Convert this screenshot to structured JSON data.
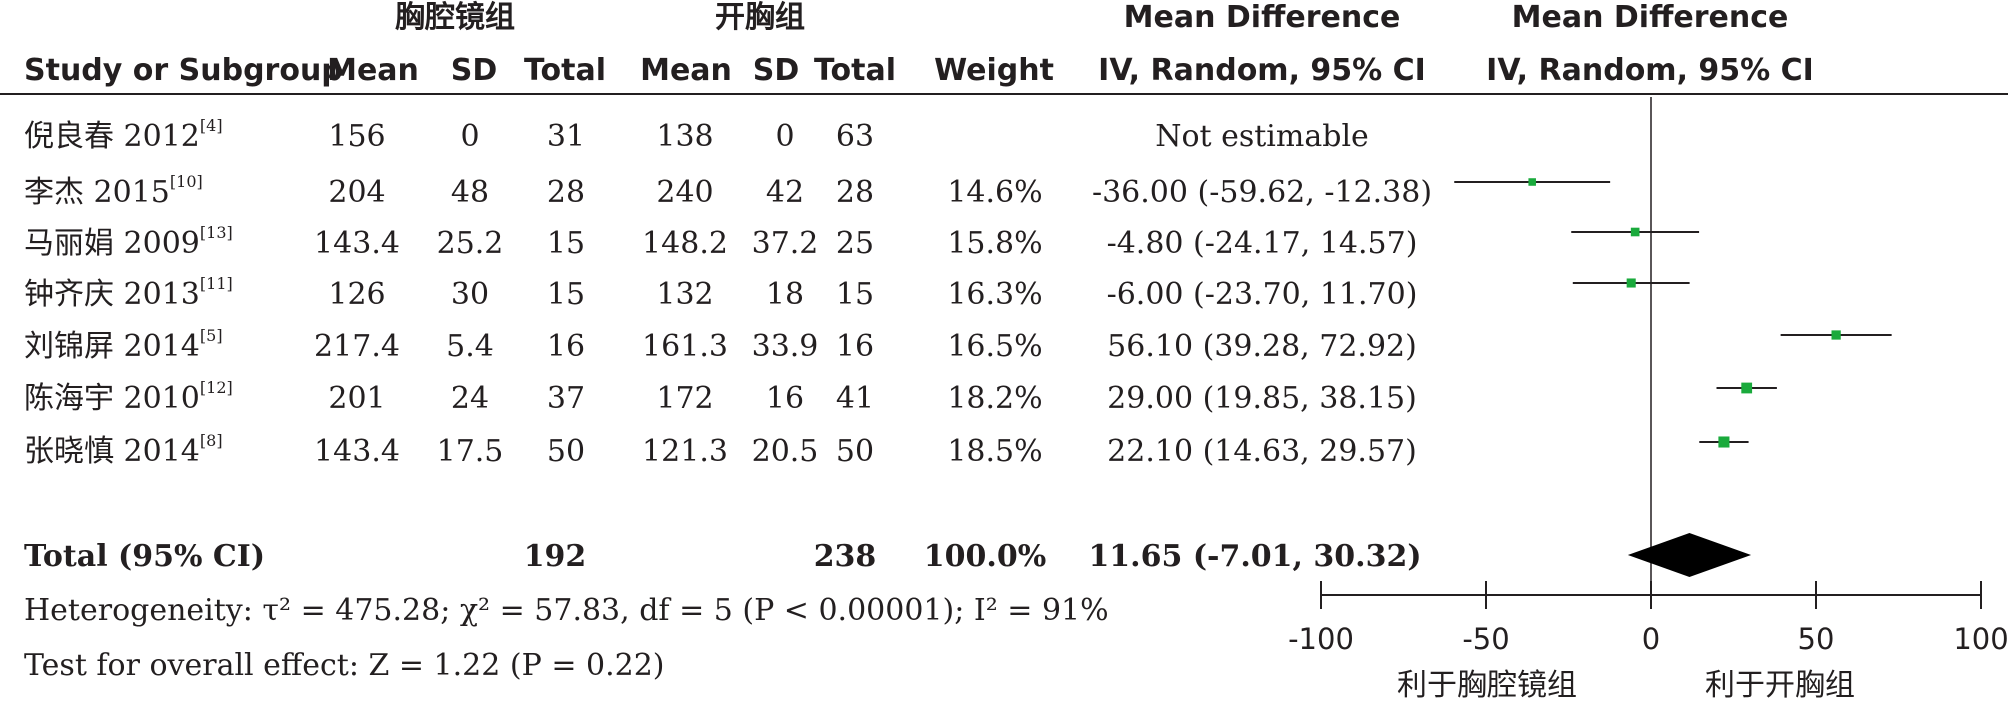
{
  "groups": {
    "experimental": "胸腔镜组",
    "control": "开胸组"
  },
  "headers": {
    "study": "Study or Subgroup",
    "mean1": "Mean",
    "sd1": "SD",
    "total1": "Total",
    "mean2": "Mean",
    "sd2": "SD",
    "total2": "Total",
    "weight": "Weight",
    "md_title": "Mean Difference",
    "md_method": "IV, Random, 95% CI",
    "plot_title": "Mean Difference",
    "plot_method": "IV, Random, 95% CI"
  },
  "studies": [
    {
      "name": "倪良春 2012",
      "ref": "[4]",
      "mean1": "156",
      "sd1": "0",
      "total1": "31",
      "mean2": "138",
      "sd2": "0",
      "total2": "63",
      "weight": "",
      "ci_text": "Not estimable"
    },
    {
      "name": "李杰 2015",
      "ref": "[10]",
      "mean1": "204",
      "sd1": "48",
      "total1": "28",
      "mean2": "240",
      "sd2": "42",
      "total2": "28",
      "weight": "14.6%",
      "ci_text": "-36.00 (-59.62, -12.38)"
    },
    {
      "name": "马丽娟 2009",
      "ref": "[13]",
      "mean1": "143.4",
      "sd1": "25.2",
      "total1": "15",
      "mean2": "148.2",
      "sd2": "37.2",
      "total2": "25",
      "weight": "15.8%",
      "ci_text": "-4.80 (-24.17, 14.57)"
    },
    {
      "name": "钟齐庆 2013",
      "ref": "[11]",
      "mean1": "126",
      "sd1": "30",
      "total1": "15",
      "mean2": "132",
      "sd2": "18",
      "total2": "15",
      "weight": "16.3%",
      "ci_text": "-6.00 (-23.70, 11.70)"
    },
    {
      "name": "刘锦屏 2014",
      "ref": "[5]",
      "mean1": "217.4",
      "sd1": "5.4",
      "total1": "16",
      "mean2": "161.3",
      "sd2": "33.9",
      "total2": "16",
      "weight": "16.5%",
      "ci_text": "56.10 (39.28, 72.92)"
    },
    {
      "name": "陈海宇 2010",
      "ref": "[12]",
      "mean1": "201",
      "sd1": "24",
      "total1": "37",
      "mean2": "172",
      "sd2": "16",
      "total2": "41",
      "weight": "18.2%",
      "ci_text": "29.00 (19.85, 38.15)"
    },
    {
      "name": "张晓慎 2014",
      "ref": "[8]",
      "mean1": "143.4",
      "sd1": "17.5",
      "total1": "50",
      "mean2": "121.3",
      "sd2": "20.5",
      "total2": "50",
      "weight": "18.5%",
      "ci_text": "22.10 (14.63, 29.57)"
    }
  ],
  "total": {
    "label": "Total (95% CI)",
    "total1": "192",
    "total2": "238",
    "weight": "100.0%",
    "ci_text": "11.65 (-7.01, 30.32)"
  },
  "heterogeneity": "Heterogeneity: τ² = 475.28; χ² = 57.83, df = 5 (P < 0.00001); I² = 91%",
  "overall_effect": "Test for overall effect: Z = 1.22 (P = 0.22)",
  "favours": {
    "left": "利于胸腔镜组",
    "right": "利于开胸组"
  },
  "colors": {
    "point": "#1aaa3c",
    "diamond": "#000000",
    "text": "#231f20"
  },
  "chart_data": {
    "type": "forest",
    "axis": {
      "min": -100,
      "max": 100,
      "ticks": [
        -100,
        -50,
        0,
        50,
        100
      ],
      "tick_labels": [
        "-100",
        "-50",
        "0",
        "50",
        "100"
      ]
    },
    "studies": [
      {
        "name": "李杰 2015",
        "md": -36.0,
        "lower": -59.62,
        "upper": -12.38,
        "weight": 14.6
      },
      {
        "name": "马丽娟 2009",
        "md": -4.8,
        "lower": -24.17,
        "upper": 14.57,
        "weight": 15.8
      },
      {
        "name": "钟齐庆 2013",
        "md": -6.0,
        "lower": -23.7,
        "upper": 11.7,
        "weight": 16.3
      },
      {
        "name": "刘锦屏 2014",
        "md": 56.1,
        "lower": 39.28,
        "upper": 72.92,
        "weight": 16.5
      },
      {
        "name": "陈海宇 2010",
        "md": 29.0,
        "lower": 19.85,
        "upper": 38.15,
        "weight": 18.2
      },
      {
        "name": "张晓慎 2014",
        "md": 22.1,
        "lower": 14.63,
        "upper": 29.57,
        "weight": 18.5
      }
    ],
    "pooled": {
      "md": 11.65,
      "lower": -7.01,
      "upper": 30.32
    }
  }
}
